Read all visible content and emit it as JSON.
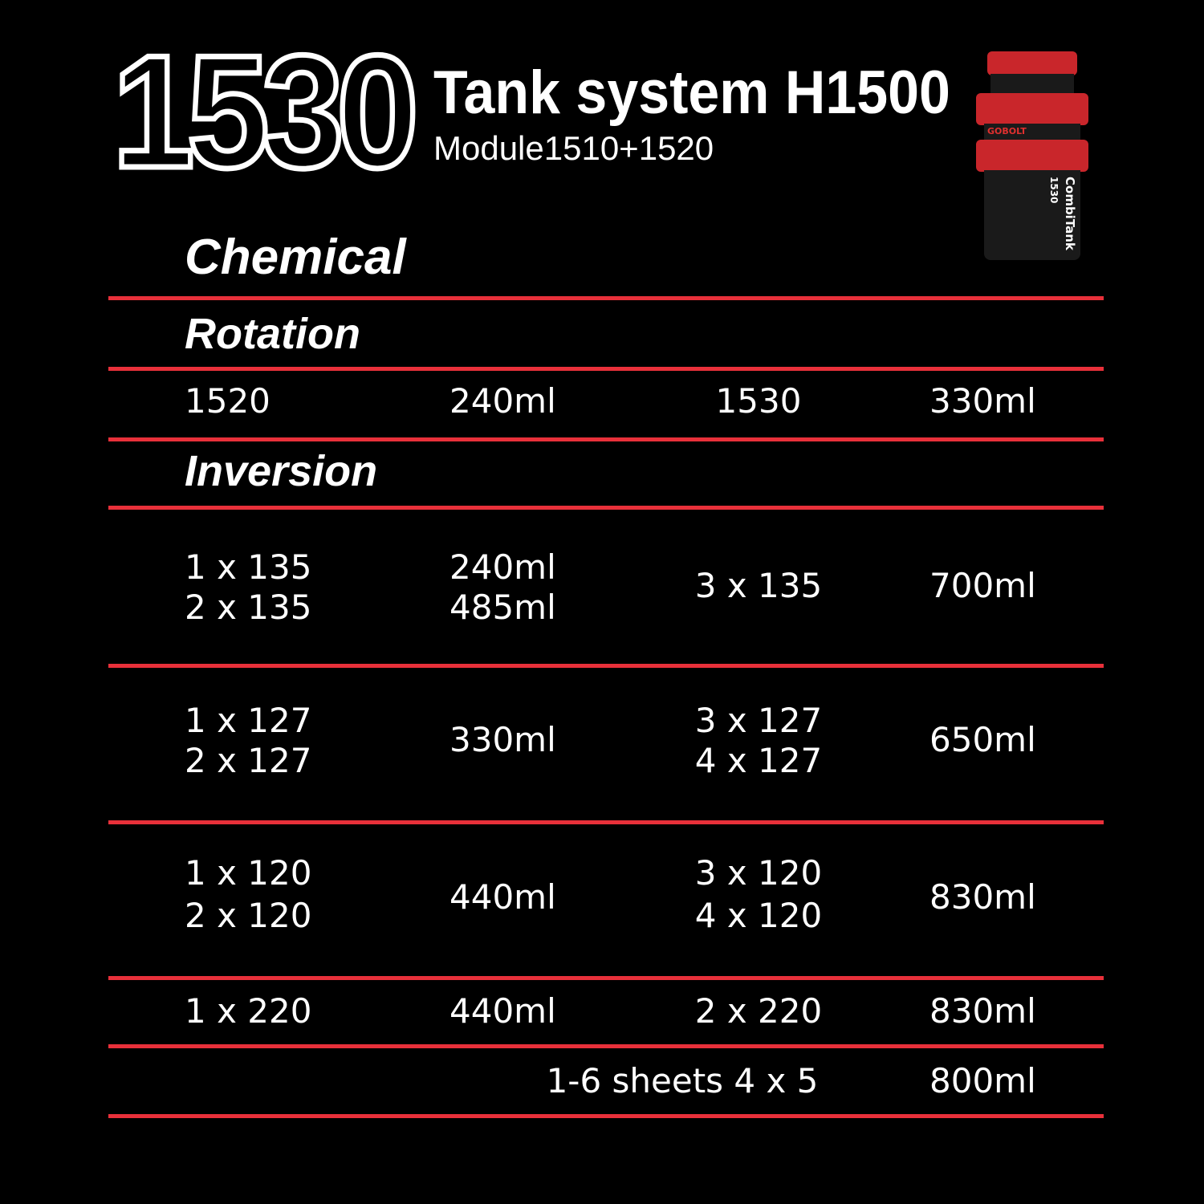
{
  "header": {
    "model_number": "1530",
    "title": "Tank system H1500",
    "subtitle": "Module1510+1520"
  },
  "product_image": {
    "brand_logo": "GOBOLT",
    "label": "CombiTank",
    "label_model": "1530"
  },
  "colors": {
    "background": "#000000",
    "divider": "#e8303a",
    "text": "#ffffff"
  },
  "sections": {
    "chemical": "Chemical",
    "rotation": "Rotation",
    "inversion": "Inversion"
  },
  "rotation_row": {
    "c1": "1520",
    "c2": "240ml",
    "c3": "1530",
    "c4": "330ml"
  },
  "inversion_rows": [
    {
      "c1": [
        "1 x 135",
        "2 x 135"
      ],
      "c2": [
        "240ml",
        "485ml"
      ],
      "c3": [
        "3 x 135"
      ],
      "c4": "700ml"
    },
    {
      "c1": [
        "1 x 127",
        "2 x 127"
      ],
      "c2": [
        "330ml"
      ],
      "c3": [
        "3 x 127",
        "4 x 127"
      ],
      "c4": "650ml"
    },
    {
      "c1": [
        "1 x 120",
        "2 x 120"
      ],
      "c2": [
        "440ml"
      ],
      "c3": [
        "3 x 120",
        "4 x 120"
      ],
      "c4": "830ml"
    },
    {
      "c1": [
        "1 x 220"
      ],
      "c2": [
        "440ml"
      ],
      "c3": [
        "2 x 220"
      ],
      "c4": "830ml"
    }
  ],
  "sheets_row": {
    "c3": "1-6 sheets 4 x 5",
    "c4": "800ml"
  }
}
